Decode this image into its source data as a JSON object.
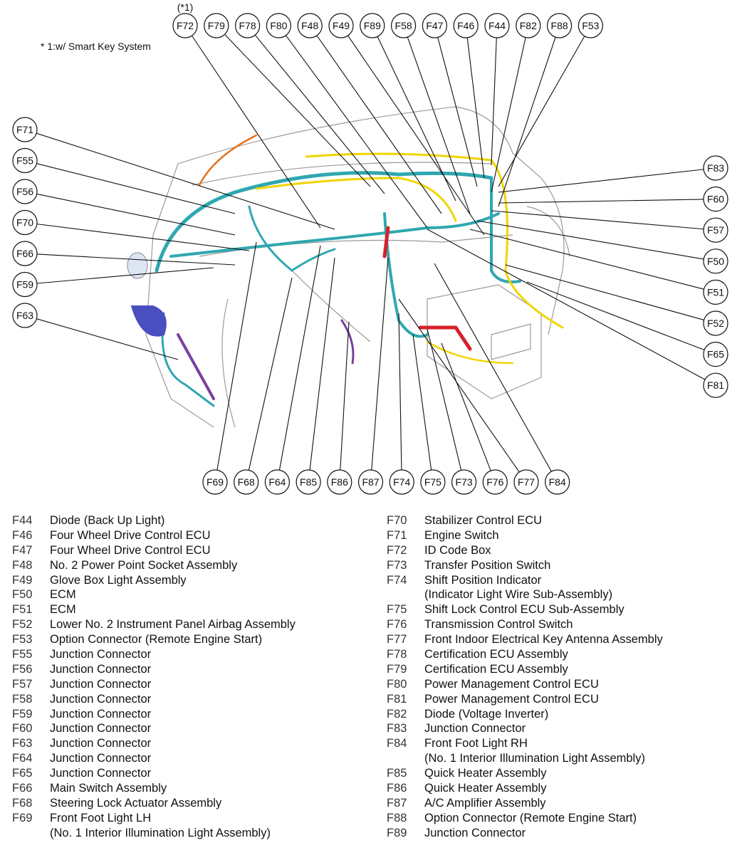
{
  "diagram": {
    "footnote_marker": "(*1)",
    "footnote": "* 1:w/ Smart Key System",
    "wire_colors": {
      "main": "#2fa7b0",
      "secondary": "#f2d400",
      "purple": "#7a3fa0",
      "red": "#d8202a",
      "blue": "#4a4fc0",
      "outline": "#9a9a9a"
    },
    "callouts_top": [
      "F72",
      "F79",
      "F78",
      "F80",
      "F48",
      "F49",
      "F89",
      "F58",
      "F47",
      "F46",
      "F44",
      "F82",
      "F88",
      "F53"
    ],
    "callouts_left": [
      "F71",
      "F55",
      "F56",
      "F70",
      "F66",
      "F59",
      "F63"
    ],
    "callouts_right": [
      "F83",
      "F60",
      "F57",
      "F50",
      "F51",
      "F52",
      "F65",
      "F81"
    ],
    "callouts_bottom": [
      "F69",
      "F68",
      "F64",
      "F85",
      "F86",
      "F87",
      "F74",
      "F75",
      "F73",
      "F76",
      "F77",
      "F84"
    ]
  },
  "legend": {
    "left": [
      {
        "code": "F44",
        "label": "Diode (Back Up Light)"
      },
      {
        "code": "F46",
        "label": "Four Wheel Drive Control ECU"
      },
      {
        "code": "F47",
        "label": "Four Wheel Drive Control ECU"
      },
      {
        "code": "F48",
        "label": "No. 2 Power Point Socket Assembly"
      },
      {
        "code": "F49",
        "label": "Glove Box Light Assembly"
      },
      {
        "code": "F50",
        "label": "ECM"
      },
      {
        "code": "F51",
        "label": "ECM"
      },
      {
        "code": "F52",
        "label": "Lower No. 2 Instrument Panel Airbag Assembly"
      },
      {
        "code": "F53",
        "label": "Option Connector (Remote Engine Start)"
      },
      {
        "code": "F55",
        "label": "Junction Connector"
      },
      {
        "code": "F56",
        "label": "Junction Connector"
      },
      {
        "code": "F57",
        "label": "Junction Connector"
      },
      {
        "code": "F58",
        "label": "Junction Connector"
      },
      {
        "code": "F59",
        "label": "Junction Connector"
      },
      {
        "code": "F60",
        "label": "Junction Connector"
      },
      {
        "code": "F63",
        "label": "Junction Connector"
      },
      {
        "code": "F64",
        "label": "Junction Connector"
      },
      {
        "code": "F65",
        "label": "Junction Connector"
      },
      {
        "code": "F66",
        "label": "Main Switch Assembly"
      },
      {
        "code": "F68",
        "label": "Steering Lock Actuator Assembly"
      },
      {
        "code": "F69",
        "label": "Front Foot Light LH",
        "line2": "(No. 1 Interior Illumination Light Assembly)"
      }
    ],
    "right": [
      {
        "code": "F70",
        "label": "Stabilizer Control ECU"
      },
      {
        "code": "F71",
        "label": "Engine Switch"
      },
      {
        "code": "F72",
        "label": "ID Code Box"
      },
      {
        "code": "F73",
        "label": "Transfer Position Switch"
      },
      {
        "code": "F74",
        "label": "Shift Position Indicator",
        "line2": "(Indicator Light Wire Sub-Assembly)"
      },
      {
        "code": "F75",
        "label": "Shift Lock Control ECU Sub-Assembly"
      },
      {
        "code": "F76",
        "label": "Transmission Control Switch"
      },
      {
        "code": "F77",
        "label": "Front Indoor Electrical Key Antenna Assembly"
      },
      {
        "code": "F78",
        "label": "Certification ECU Assembly"
      },
      {
        "code": "F79",
        "label": "Certification ECU Assembly"
      },
      {
        "code": "F80",
        "label": "Power Management Control ECU"
      },
      {
        "code": "F81",
        "label": "Power Management Control ECU"
      },
      {
        "code": "F82",
        "label": "Diode (Voltage Inverter)"
      },
      {
        "code": "F83",
        "label": "Junction Connector"
      },
      {
        "code": "F84",
        "label": "Front Foot Light RH",
        "line2": "(No. 1 Interior Illumination Light Assembly)"
      },
      {
        "code": "F85",
        "label": "Quick Heater Assembly"
      },
      {
        "code": "F86",
        "label": "Quick Heater Assembly"
      },
      {
        "code": "F87",
        "label": "A/C Amplifier Assembly"
      },
      {
        "code": "F88",
        "label": "Option Connector (Remote Engine Start)"
      },
      {
        "code": "F89",
        "label": "Junction Connector"
      }
    ]
  }
}
